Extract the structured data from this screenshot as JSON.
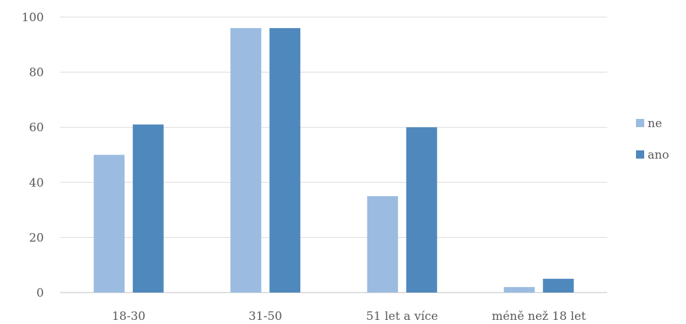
{
  "chart_data": {
    "type": "bar",
    "categories": [
      "18-30",
      "31-50",
      "51 let a více",
      "méně než 18 let"
    ],
    "series": [
      {
        "name": "ne",
        "values": [
          50,
          96,
          35,
          2
        ],
        "color": "#9BBBE0"
      },
      {
        "name": "ano",
        "values": [
          61,
          96,
          60,
          5
        ],
        "color": "#4F88BC"
      }
    ],
    "yticks": [
      0,
      20,
      40,
      60,
      80,
      100
    ],
    "ylim": [
      0,
      100
    ],
    "grid": true,
    "legend": "right"
  },
  "colors": {
    "grid": "#D9D9D9",
    "axis": "#BFBFBF"
  }
}
